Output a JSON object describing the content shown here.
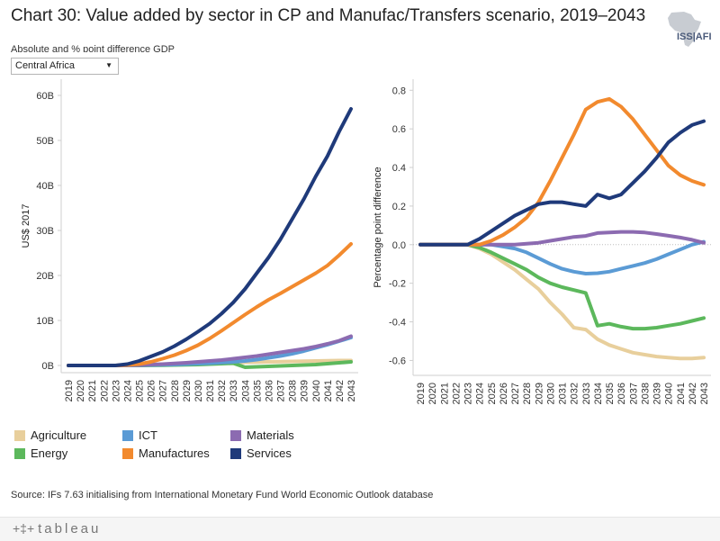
{
  "header": {
    "title": "Chart 30: Value added by sector in CP and Manufac/Transfers scenario, 2019–2043",
    "subtitle": "Absolute and % point difference GDP",
    "logo_text": "ISS|AFI"
  },
  "filter": {
    "selected": "Central Africa"
  },
  "colors": {
    "Agriculture": "#e8cf9c",
    "ICT": "#5b9bd5",
    "Materials": "#8c6bb1",
    "Energy": "#5cb85c",
    "Manufactures": "#f28a2e",
    "Services": "#1f3a7a"
  },
  "legend": {
    "items": [
      {
        "label": "Agriculture",
        "color": "#e8cf9c"
      },
      {
        "label": "Energy",
        "color": "#5cb85c"
      },
      {
        "label": "ICT",
        "color": "#5b9bd5"
      },
      {
        "label": "Manufactures",
        "color": "#f28a2e"
      },
      {
        "label": "Materials",
        "color": "#8c6bb1"
      },
      {
        "label": "Services",
        "color": "#1f3a7a"
      }
    ]
  },
  "source": "Source: IFs 7.63 initialising from International Monetary Fund World Economic Outlook database",
  "footer": {
    "brand": "tableau",
    "plus_glyph": "+‡+"
  },
  "chart_data": [
    {
      "type": "line",
      "ylabel": "US$ 2017",
      "ylim": [
        0,
        62
      ],
      "yticks": [
        0,
        10,
        20,
        30,
        40,
        50,
        60
      ],
      "ytick_labels": [
        "0B",
        "10B",
        "20B",
        "30B",
        "40B",
        "50B",
        "60B"
      ],
      "x": [
        "2019",
        "2020",
        "2021",
        "2022",
        "2023",
        "2024",
        "2025",
        "2026",
        "2027",
        "2028",
        "2029",
        "2030",
        "2031",
        "2032",
        "2033",
        "2034",
        "2035",
        "2036",
        "2037",
        "2038",
        "2039",
        "2040",
        "2041",
        "2042",
        "2043"
      ],
      "series": [
        {
          "name": "Agriculture",
          "values": [
            0,
            0,
            0,
            0,
            0,
            0.02,
            0.05,
            0.1,
            0.15,
            0.2,
            0.25,
            0.32,
            0.4,
            0.5,
            0.6,
            0.7,
            0.75,
            0.8,
            0.85,
            0.9,
            0.95,
            1.0,
            1.05,
            1.1,
            1.1
          ]
        },
        {
          "name": "Energy",
          "values": [
            0,
            0,
            0,
            0,
            0,
            0,
            0,
            0.02,
            0.05,
            0.1,
            0.15,
            0.2,
            0.3,
            0.4,
            0.5,
            -0.4,
            -0.3,
            -0.2,
            -0.1,
            0,
            0.1,
            0.2,
            0.4,
            0.6,
            0.8
          ]
        },
        {
          "name": "ICT",
          "values": [
            0,
            0,
            0,
            0,
            0,
            0,
            0.05,
            0.1,
            0.15,
            0.2,
            0.3,
            0.4,
            0.5,
            0.65,
            0.8,
            1.0,
            1.3,
            1.7,
            2.1,
            2.6,
            3.2,
            3.9,
            4.6,
            5.4,
            6.2
          ]
        },
        {
          "name": "Materials",
          "values": [
            0,
            0,
            0,
            0,
            0,
            0.05,
            0.1,
            0.2,
            0.3,
            0.45,
            0.6,
            0.8,
            1.0,
            1.2,
            1.5,
            1.8,
            2.1,
            2.5,
            2.9,
            3.3,
            3.7,
            4.2,
            4.8,
            5.5,
            6.5
          ]
        },
        {
          "name": "Manufactures",
          "values": [
            0,
            0,
            0,
            0,
            0,
            0.1,
            0.3,
            0.8,
            1.5,
            2.3,
            3.3,
            4.5,
            6.0,
            7.7,
            9.5,
            11.3,
            13.0,
            14.6,
            16.0,
            17.5,
            19.0,
            20.5,
            22.2,
            24.5,
            27.0
          ]
        },
        {
          "name": "Services",
          "values": [
            0,
            0,
            0,
            0,
            0,
            0.3,
            1.0,
            2.0,
            3.0,
            4.3,
            5.8,
            7.5,
            9.3,
            11.5,
            14.0,
            17.0,
            20.5,
            24.0,
            28.0,
            32.5,
            37.0,
            42.0,
            46.5,
            52.0,
            57.0
          ]
        }
      ]
    },
    {
      "type": "line",
      "ylabel": "Percentage point difference",
      "ylim": [
        -0.64,
        0.82
      ],
      "yticks": [
        -0.6,
        -0.4,
        -0.2,
        0.0,
        0.2,
        0.4,
        0.6,
        0.8
      ],
      "ytick_labels": [
        "-0.6",
        "-0.4",
        "-0.2",
        "0.0",
        "0.2",
        "0.4",
        "0.6",
        "0.8"
      ],
      "x": [
        "2019",
        "2020",
        "2021",
        "2022",
        "2023",
        "2024",
        "2025",
        "2026",
        "2027",
        "2028",
        "2029",
        "2030",
        "2031",
        "2032",
        "2033",
        "2034",
        "2035",
        "2036",
        "2037",
        "2038",
        "2039",
        "2040",
        "2041",
        "2042",
        "2043"
      ],
      "series": [
        {
          "name": "Agriculture",
          "values": [
            0,
            0,
            0,
            0,
            0,
            -0.02,
            -0.05,
            -0.09,
            -0.13,
            -0.18,
            -0.23,
            -0.3,
            -0.36,
            -0.43,
            -0.44,
            -0.49,
            -0.52,
            -0.54,
            -0.56,
            -0.57,
            -0.58,
            -0.585,
            -0.59,
            -0.59,
            -0.585
          ]
        },
        {
          "name": "Energy",
          "values": [
            0,
            0,
            0,
            0,
            0,
            -0.015,
            -0.04,
            -0.07,
            -0.1,
            -0.13,
            -0.17,
            -0.2,
            -0.22,
            -0.235,
            -0.25,
            -0.42,
            -0.41,
            -0.425,
            -0.435,
            -0.435,
            -0.43,
            -0.42,
            -0.41,
            -0.395,
            -0.38
          ]
        },
        {
          "name": "ICT",
          "values": [
            0,
            0,
            0,
            0,
            0,
            0,
            0,
            -0.01,
            -0.02,
            -0.04,
            -0.07,
            -0.1,
            -0.125,
            -0.14,
            -0.15,
            -0.148,
            -0.14,
            -0.125,
            -0.11,
            -0.095,
            -0.075,
            -0.05,
            -0.025,
            0,
            0.015
          ]
        },
        {
          "name": "Materials",
          "values": [
            0,
            0,
            0,
            0,
            0,
            0,
            0,
            0,
            0,
            0.005,
            0.01,
            0.02,
            0.03,
            0.04,
            0.045,
            0.06,
            0.063,
            0.066,
            0.066,
            0.063,
            0.055,
            0.046,
            0.037,
            0.025,
            0.01
          ]
        },
        {
          "name": "Manufactures",
          "values": [
            0,
            0,
            0,
            0,
            0,
            0,
            0.02,
            0.05,
            0.09,
            0.14,
            0.22,
            0.33,
            0.45,
            0.57,
            0.7,
            0.74,
            0.755,
            0.715,
            0.65,
            0.57,
            0.49,
            0.41,
            0.36,
            0.33,
            0.31
          ]
        },
        {
          "name": "Services",
          "values": [
            0,
            0,
            0,
            0,
            0,
            0.03,
            0.07,
            0.11,
            0.15,
            0.18,
            0.21,
            0.22,
            0.22,
            0.21,
            0.2,
            0.26,
            0.24,
            0.26,
            0.32,
            0.38,
            0.45,
            0.53,
            0.58,
            0.62,
            0.64
          ]
        }
      ]
    }
  ]
}
